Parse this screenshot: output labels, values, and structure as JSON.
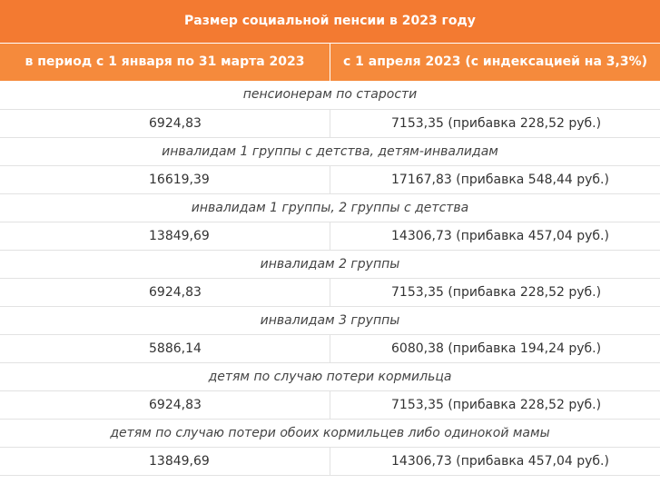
{
  "table": {
    "title": "Размер социальной пенсии в 2023 году",
    "columns": [
      "в период с 1 января по 31 марта 2023",
      "с 1 апреля 2023 (с индексацией на 3,3%)"
    ],
    "rows": [
      {
        "category": "пенсионерам по старости",
        "before": "6924,83",
        "after": "7153,35 (прибавка 228,52 руб.)"
      },
      {
        "category": "инвалидам 1 группы с детства, детям-инвалидам",
        "before": "16619,39",
        "after": "17167,83 (прибавка 548,44 руб.)"
      },
      {
        "category": "инвалидам 1 группы, 2 группы с детства",
        "before": "13849,69",
        "after": "14306,73 (прибавка 457,04 руб.)"
      },
      {
        "category": "инвалидам 2 группы",
        "before": "6924,83",
        "after": "7153,35 (прибавка 228,52 руб.)"
      },
      {
        "category": "инвалидам 3 группы",
        "before": "5886,14",
        "after": "6080,38 (прибавка 194,24 руб.)"
      },
      {
        "category": "детям по случаю потери кормильца",
        "before": "6924,83",
        "after": "7153,35 (прибавка 228,52 руб.)"
      },
      {
        "category": "детям по случаю потери обоих кормильцев либо одинокой мамы",
        "before": "13849,69",
        "after": "14306,73 (прибавка 457,04 руб.)"
      }
    ]
  },
  "colors": {
    "header_orange": "#f37a31",
    "subheader_orange": "#f58a3c",
    "border_grey": "#e2e2e2"
  }
}
